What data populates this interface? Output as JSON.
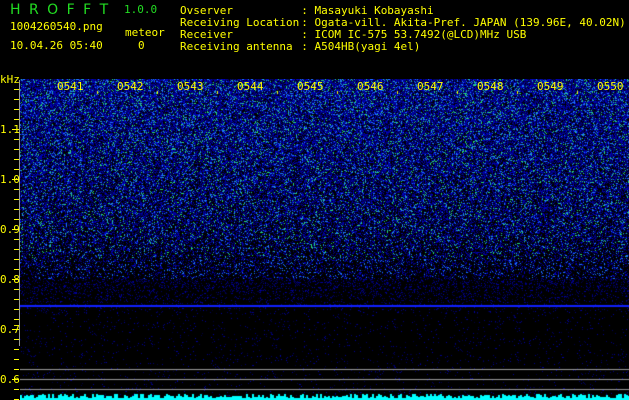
{
  "header": {
    "app_name": "H R O F F T",
    "version": "1.0.0",
    "filename": "1004260540.png",
    "datetime": "10.04.26 05:40",
    "meteor_label": "meteor",
    "meteor_count": "0"
  },
  "info": [
    {
      "label": "Ovserver",
      "value": ": Masayuki Kobayashi"
    },
    {
      "label": "Receiving Location",
      "value": ": Ogata-vill. Akita-Pref. JAPAN (139.96E, 40.02N)"
    },
    {
      "label": "Receiver",
      "value": ": ICOM IC-575 53.7492(@LCD)MHz USB"
    },
    {
      "label": "Receiving antenna",
      "value": ": A504HB(yagi 4el)"
    }
  ],
  "axis": {
    "unit": "kHz",
    "y_labels": [
      "1.1",
      "1.0",
      "0.9",
      "0.8",
      "0.7",
      "0.6"
    ],
    "time_labels": [
      "0541",
      "0542",
      "0543",
      "0544",
      "0545",
      "0546",
      "0547",
      "0548",
      "0549",
      "0550"
    ]
  },
  "colors": {
    "text": "#ffff00",
    "logo": "#22dd22",
    "spectrum": "#00ffff",
    "signal": "#0000ff"
  }
}
